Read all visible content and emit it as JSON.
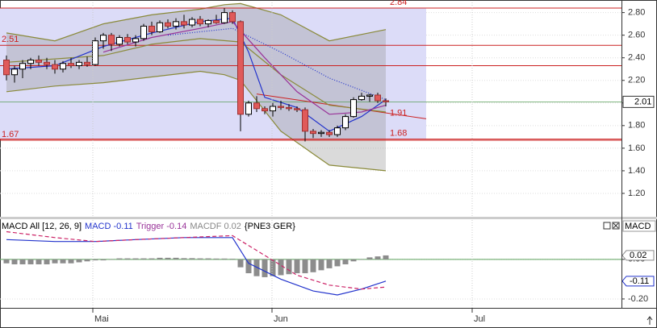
{
  "chart_data": [
    {
      "type": "candlestick",
      "x": [
        0,
        1,
        2,
        3,
        4,
        5,
        6,
        7,
        8,
        9,
        10,
        11,
        12,
        13,
        14,
        15,
        16,
        17,
        18,
        19,
        20,
        21,
        22,
        23,
        24,
        25,
        26,
        27,
        28,
        29,
        30,
        31,
        32,
        33,
        34,
        35,
        36,
        37,
        38,
        39,
        40,
        41,
        42,
        43,
        44,
        45,
        46,
        47
      ],
      "open": [
        2.38,
        2.25,
        2.3,
        2.35,
        2.38,
        2.36,
        2.34,
        2.3,
        2.35,
        2.33,
        2.36,
        2.34,
        2.55,
        2.6,
        2.52,
        2.58,
        2.54,
        2.57,
        2.68,
        2.63,
        2.71,
        2.68,
        2.72,
        2.69,
        2.74,
        2.7,
        2.73,
        2.71,
        2.8,
        2.72,
        1.9,
        2.0,
        1.95,
        1.93,
        1.97,
        1.96,
        1.95,
        1.94,
        1.75,
        1.73,
        1.74,
        1.72,
        1.78,
        1.88,
        2.03,
        2.06,
        2.07,
        2.02
      ],
      "high": [
        2.42,
        2.33,
        2.38,
        2.4,
        2.42,
        2.4,
        2.38,
        2.37,
        2.4,
        2.38,
        2.41,
        2.58,
        2.62,
        2.62,
        2.6,
        2.61,
        2.6,
        2.7,
        2.72,
        2.73,
        2.74,
        2.75,
        2.78,
        2.76,
        2.77,
        2.74,
        2.78,
        2.84,
        2.82,
        2.73,
        2.02,
        2.06,
        1.97,
        2.0,
        2.02,
        1.99,
        1.97,
        1.96,
        1.77,
        1.76,
        1.76,
        1.8,
        1.9,
        2.05,
        2.09,
        2.08,
        2.09,
        2.04
      ],
      "low": [
        2.2,
        2.18,
        2.22,
        2.3,
        2.33,
        2.3,
        2.26,
        2.27,
        2.31,
        2.3,
        2.32,
        2.33,
        2.48,
        2.46,
        2.5,
        2.52,
        2.5,
        2.55,
        2.6,
        2.62,
        2.66,
        2.65,
        2.66,
        2.67,
        2.68,
        2.67,
        2.7,
        2.7,
        2.7,
        1.75,
        1.88,
        1.92,
        1.9,
        1.88,
        1.94,
        1.93,
        1.92,
        1.66,
        1.69,
        1.7,
        1.7,
        1.7,
        1.76,
        1.87,
        2.02,
        2.01,
        2.0,
        1.97
      ],
      "close": [
        2.25,
        2.3,
        2.35,
        2.38,
        2.36,
        2.34,
        2.3,
        2.35,
        2.33,
        2.36,
        2.34,
        2.55,
        2.6,
        2.52,
        2.58,
        2.54,
        2.57,
        2.68,
        2.63,
        2.71,
        2.68,
        2.72,
        2.69,
        2.74,
        2.7,
        2.73,
        2.71,
        2.8,
        2.72,
        1.9,
        2.0,
        1.95,
        1.93,
        1.97,
        1.96,
        1.95,
        1.94,
        1.75,
        1.73,
        1.74,
        1.72,
        1.78,
        1.88,
        2.03,
        2.06,
        2.07,
        2.02,
        2.01
      ],
      "up_color": "#ffffff",
      "down_color": "#e05a5a",
      "xlim": [
        -0.8,
        76.2
      ],
      "ylim": [
        1.0,
        2.89
      ],
      "yticks": [
        {
          "value": 2.8,
          "label": "2.80"
        },
        {
          "value": 2.6,
          "label": "2.60"
        },
        {
          "value": 2.4,
          "label": "2.40"
        },
        {
          "value": 2.2,
          "label": "2.20"
        },
        {
          "value": 2.0,
          "label": "2.00"
        },
        {
          "value": 1.8,
          "label": "1.80"
        },
        {
          "value": 1.6,
          "label": "1.60"
        },
        {
          "value": 1.4,
          "label": "1.40"
        },
        {
          "value": 1.2,
          "label": "1.20"
        }
      ],
      "band": {
        "color": "#8a8a3a",
        "x": [
          0,
          6,
          12,
          18,
          24,
          27,
          29,
          34,
          40,
          47
        ],
        "upper": [
          2.62,
          2.55,
          2.7,
          2.78,
          2.83,
          2.87,
          2.88,
          2.78,
          2.55,
          2.65
        ],
        "lower": [
          2.1,
          2.15,
          2.18,
          2.23,
          2.28,
          2.25,
          2.2,
          1.75,
          1.45,
          1.4
        ]
      },
      "series": [
        {
          "color": "#8a8a3a",
          "style": "solid",
          "x": [
            0,
            12,
            18,
            24,
            29,
            34,
            40,
            47
          ],
          "values": [
            2.36,
            2.42,
            2.52,
            2.57,
            2.54,
            2.25,
            1.98,
            1.92
          ]
        },
        {
          "color": "#2233cc",
          "style": "solid",
          "x": [
            0,
            6,
            12,
            18,
            24,
            28,
            30,
            32,
            36,
            40,
            44,
            47
          ],
          "values": [
            2.3,
            2.33,
            2.5,
            2.62,
            2.72,
            2.75,
            2.45,
            2.05,
            1.96,
            1.75,
            1.88,
            2.03
          ]
        },
        {
          "color": "#993399",
          "style": "solid",
          "x": [
            12,
            18,
            24,
            28,
            32,
            36,
            40,
            44,
            47
          ],
          "values": [
            2.45,
            2.58,
            2.66,
            2.72,
            2.4,
            2.1,
            1.9,
            1.92,
            1.98
          ]
        },
        {
          "color": "#2233cc",
          "style": "dotted",
          "x": [
            20,
            28,
            34,
            40,
            47
          ],
          "values": [
            2.6,
            2.66,
            2.45,
            2.22,
            2.03
          ]
        }
      ],
      "levels": [
        2.84,
        2.51,
        1.68,
        1.67
      ],
      "level_label_side": [
        "right",
        "left",
        "right",
        "left"
      ],
      "rules": [
        2.33
      ],
      "level_color": "#cc2222",
      "zone_end": 52,
      "zone_color": "#dcdcf8",
      "trend": {
        "x": [
          31,
          52
        ],
        "values": [
          2.08,
          1.86
        ],
        "label": 1.91
      },
      "last": 2.01,
      "last_color": "#5aa05a"
    },
    {
      "type": "macd",
      "legend": [
        "MACD All [12, 26, 9]",
        "MACD -0.11",
        "Trigger -0.14",
        "MACDF 0.02",
        "{PNE3 GER}"
      ],
      "legend_colors": [
        "#000000",
        "#2233cc",
        "#993399",
        "#888888",
        "#000000"
      ],
      "label": "MACD",
      "x": [
        0,
        1,
        2,
        3,
        4,
        5,
        6,
        7,
        8,
        9,
        10,
        11,
        12,
        13,
        14,
        15,
        16,
        17,
        18,
        19,
        20,
        21,
        22,
        23,
        24,
        25,
        26,
        27,
        28,
        29,
        30,
        31,
        32,
        33,
        34,
        35,
        36,
        37,
        38,
        39,
        40,
        41,
        42,
        43,
        44,
        45,
        46,
        47
      ],
      "values": [
        -0.02,
        -0.025,
        -0.025,
        -0.025,
        -0.025,
        -0.025,
        -0.02,
        -0.02,
        -0.02,
        -0.015,
        -0.01,
        -0.005,
        -0.005,
        0,
        0.005,
        0.005,
        0.005,
        0.005,
        0.005,
        0.008,
        0.008,
        0.008,
        0.006,
        0.006,
        0.005,
        0.005,
        0.004,
        0.004,
        0.003,
        -0.04,
        -0.07,
        -0.085,
        -0.09,
        -0.085,
        -0.08,
        -0.075,
        -0.07,
        -0.07,
        -0.065,
        -0.055,
        -0.045,
        -0.035,
        -0.025,
        -0.01,
        0.0,
        0.01,
        0.015,
        0.02
      ],
      "color": "#8c8c8c",
      "series": [
        {
          "color": "#2233cc",
          "style": "solid",
          "x": [
            0,
            6,
            11,
            16,
            22,
            28,
            30,
            34,
            38,
            41,
            44,
            47
          ],
          "values": [
            0.1,
            0.09,
            0.09,
            0.1,
            0.11,
            0.11,
            -0.02,
            -0.1,
            -0.16,
            -0.18,
            -0.15,
            -0.11
          ]
        },
        {
          "color": "#cc2266",
          "style": "dashed",
          "x": [
            0,
            6,
            11,
            16,
            22,
            28,
            32,
            36,
            40,
            44,
            47
          ],
          "values": [
            0.14,
            0.11,
            0.09,
            0.1,
            0.11,
            0.12,
            0.02,
            -0.08,
            -0.13,
            -0.15,
            -0.14
          ]
        }
      ],
      "xlim": [
        -0.8,
        76.2
      ],
      "ylim": [
        -0.245,
        0.15
      ],
      "yticks": [
        {
          "value": 0,
          "label": "0.00"
        },
        {
          "value": -0.2,
          "label": "-0.20"
        }
      ],
      "markers": [
        0.02,
        -0.11
      ],
      "marker_colors": [
        "#8c8c8c",
        "#2233cc"
      ],
      "zero_color": "#5aa05a",
      "xticks": [
        {
          "value": 10.7,
          "label": "Mai"
        },
        {
          "value": 32.9,
          "label": "Jun"
        },
        {
          "value": 57.7,
          "label": "Jul"
        }
      ]
    }
  ]
}
